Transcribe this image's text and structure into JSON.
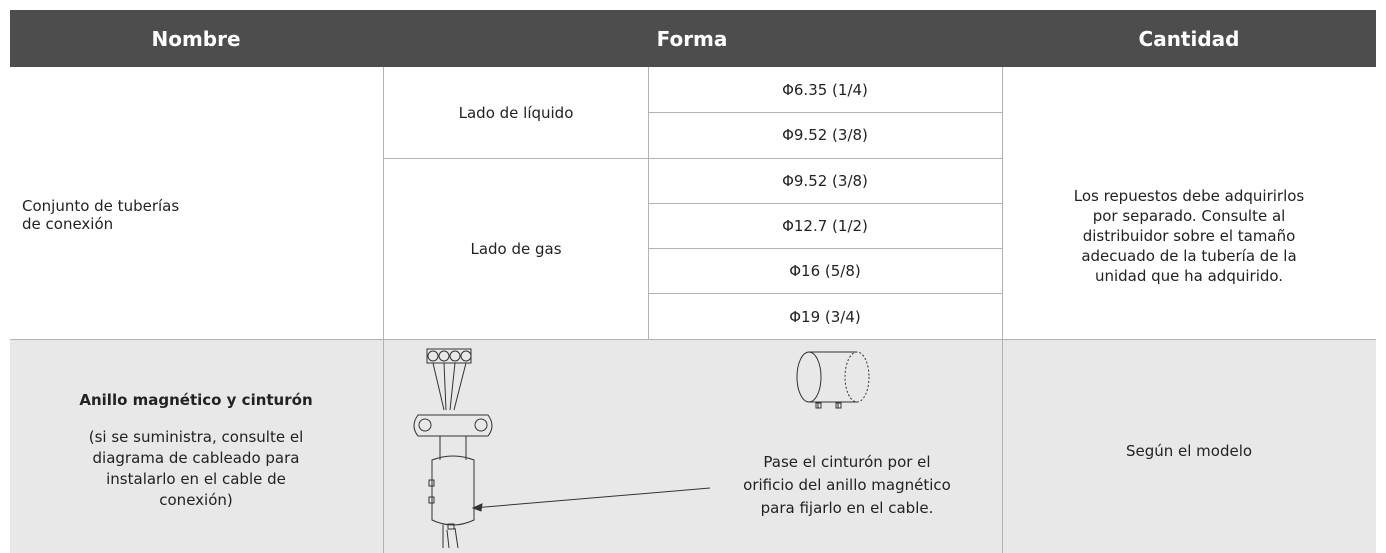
{
  "table": {
    "headers": [
      "Nombre",
      "Forma",
      "Cantidad"
    ],
    "rows": [
      {
        "name_lines": [
          "Conjunto de tuberías",
          "de conexión"
        ],
        "groups": [
          {
            "label": "Lado de líquido",
            "sizes": [
              "Φ6.35 (1/4)",
              "Φ9.52 (3/8)"
            ]
          },
          {
            "label": "Lado de gas",
            "sizes": [
              "Φ9.52 (3/8)",
              "Φ12.7 (1/2)",
              "Φ16 (5/8)",
              "Φ19 (3/4)"
            ]
          }
        ],
        "quantity_lines": [
          "Los repuestos debe adquirirlos",
          "por separado. Consulte al",
          "distribuidor sobre el tamaño",
          "adecuado de la tubería de la",
          "unidad que ha adquirido."
        ]
      },
      {
        "name": "Anillo magnético y cinturón",
        "note_lines": [
          "(si se suministra, consulte el",
          "diagrama de cableado para",
          "instalarlo en el cable de",
          "conexión)"
        ],
        "caption_lines": [
          "Pase el cinturón por el",
          "orificio del anillo magnético",
          "para fijarlo en el cable."
        ],
        "quantity": "Según el modelo"
      }
    ]
  }
}
